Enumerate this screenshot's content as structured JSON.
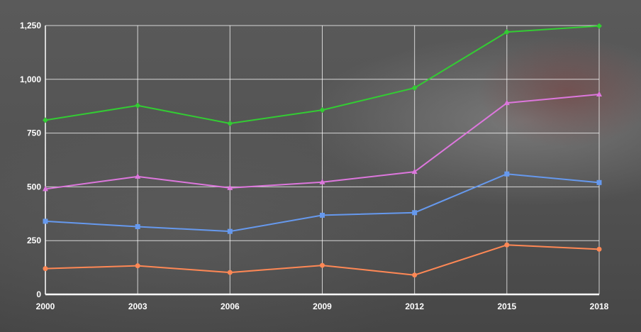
{
  "chart_data": {
    "type": "line",
    "x": [
      "2000",
      "2003",
      "2006",
      "2009",
      "2012",
      "2015",
      "2018"
    ],
    "ylim": [
      0,
      1250
    ],
    "yticks": [
      0,
      250,
      500,
      750,
      1000,
      1250
    ],
    "ytick_labels": [
      "0",
      "250",
      "500",
      "750",
      "1,000",
      "1,250"
    ],
    "grid": true,
    "series": [
      {
        "color": "#33cc33",
        "marker": "diamond",
        "values": [
          810,
          878,
          795,
          857,
          960,
          1220,
          1248
        ]
      },
      {
        "color": "#dd77dd",
        "marker": "triangle",
        "values": [
          490,
          548,
          495,
          522,
          570,
          890,
          930
        ]
      },
      {
        "color": "#6699ee",
        "marker": "square",
        "values": [
          340,
          315,
          293,
          368,
          380,
          560,
          520
        ]
      },
      {
        "color": "#ff8855",
        "marker": "circle",
        "values": [
          120,
          133,
          102,
          135,
          90,
          230,
          210
        ]
      }
    ]
  }
}
